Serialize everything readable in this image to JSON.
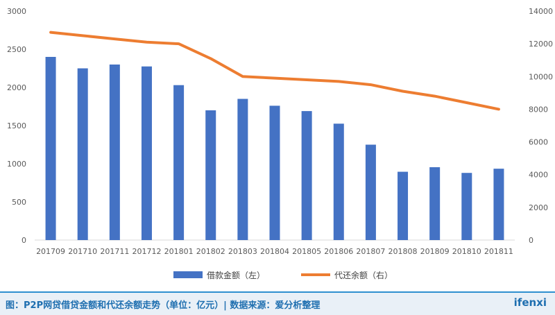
{
  "chart_data": {
    "type": "bar",
    "categories": [
      "201709",
      "201710",
      "201711",
      "201712",
      "201801",
      "201802",
      "201803",
      "201804",
      "201805",
      "201806",
      "201807",
      "201808",
      "201809",
      "201810",
      "201811"
    ],
    "series": [
      {
        "name": "借款金额（左）",
        "type": "bar",
        "axis": "left",
        "color": "#4472c4",
        "values": [
          2400,
          2250,
          2300,
          2275,
          2030,
          1700,
          1850,
          1760,
          1690,
          1525,
          1250,
          895,
          955,
          880,
          935
        ]
      },
      {
        "name": "代还余额（右）",
        "type": "line",
        "axis": "right",
        "color": "#ed7d31",
        "values": [
          12700,
          12500,
          12300,
          12100,
          12000,
          11100,
          10000,
          9900,
          9800,
          9700,
          9500,
          9100,
          8800,
          8400,
          8000
        ]
      }
    ],
    "y_left": {
      "min": 0,
      "max": 3000,
      "step": 500,
      "ticks": [
        "0",
        "500",
        "1000",
        "1500",
        "2000",
        "2500",
        "3000"
      ]
    },
    "y_right": {
      "min": 0,
      "max": 14000,
      "step": 2000,
      "ticks": [
        "0",
        "2000",
        "4000",
        "6000",
        "8000",
        "10000",
        "12000",
        "14000"
      ]
    },
    "grid": false,
    "legend_position": "bottom"
  },
  "footer": {
    "caption": "图：P2P网贷借贷金额和代还余额走势（单位：亿元）| 数据来源：爱分析整理",
    "brand": "ifenxi"
  }
}
